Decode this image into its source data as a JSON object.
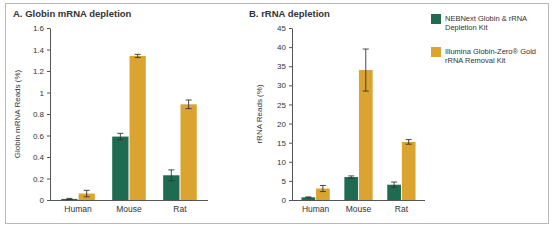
{
  "chart_data": [
    {
      "type": "bar",
      "title": "A. Globin mRNA depletion",
      "y_label": "Globin mRNA Reads (%)",
      "categories": [
        "Human",
        "Mouse",
        "Rat"
      ],
      "series": [
        {
          "name": "NEBNext Globin & rRNA Depletion Kit",
          "color": "#1d6b50",
          "values": [
            0.01,
            0.59,
            0.23
          ],
          "errors": [
            0.005,
            0.03,
            0.05
          ]
        },
        {
          "name": "Illumina Globin-Zero® Gold rRNA Removal Kit",
          "color": "#dba431",
          "values": [
            0.06,
            1.34,
            0.89
          ],
          "errors": [
            0.03,
            0.015,
            0.04
          ]
        }
      ],
      "ylim": [
        0,
        1.6
      ],
      "yticks": [
        0,
        0.2,
        0.4,
        0.6,
        0.8,
        1,
        1.2,
        1.4,
        1.6
      ],
      "grid": false
    },
    {
      "type": "bar",
      "title": "B. rRNA depletion",
      "y_label": "rRNA Reads (%)",
      "categories": [
        "Human",
        "Mouse",
        "Rat"
      ],
      "series": [
        {
          "name": "NEBNext Globin & rRNA Depletion Kit",
          "color": "#1d6b50",
          "values": [
            0.7,
            6,
            4
          ],
          "errors": [
            0.1,
            0.3,
            0.7
          ]
        },
        {
          "name": "Illumina Globin-Zero® Gold rRNA Removal Kit",
          "color": "#dba431",
          "values": [
            3,
            34,
            15.2
          ],
          "errors": [
            0.8,
            5.5,
            0.6
          ]
        }
      ],
      "ylim": [
        0,
        45
      ],
      "yticks": [
        0,
        5,
        10,
        15,
        20,
        25,
        30,
        35,
        40,
        45
      ],
      "grid": false,
      "legend": "right"
    }
  ]
}
